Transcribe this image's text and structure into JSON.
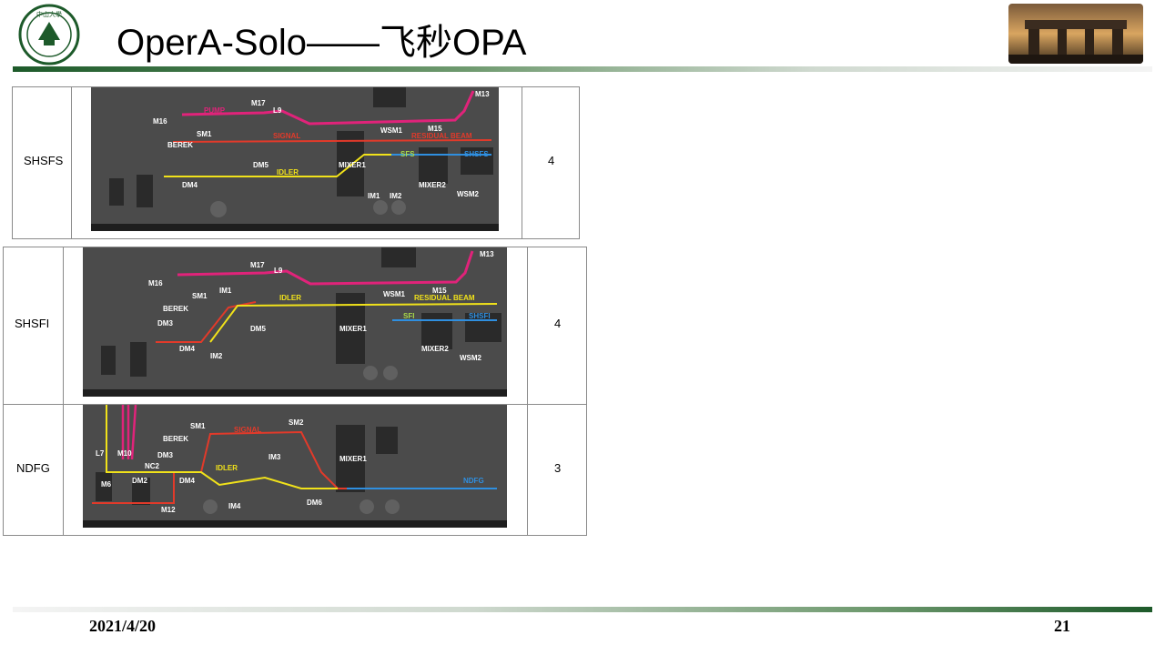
{
  "header": {
    "title": "OperA-Solo——飞秒OPA",
    "logo_text": "中山大學 SUN YAT-SEN UNIVERSITY"
  },
  "rows": [
    {
      "label": "SHSFS",
      "count": "4",
      "diagram_labels": [
        "M16",
        "PUMP",
        "M17",
        "L9",
        "SM1",
        "SIGNAL",
        "BEREK",
        "DM5",
        "IDLER",
        "DM4",
        "MIXER1",
        "WSM1",
        "M15",
        "RESIDUAL BEAM",
        "SFS",
        "SHSFS",
        "MIXER2",
        "WSM2",
        "IM1",
        "IM2",
        "M13"
      ]
    },
    {
      "label": "SHSFI",
      "count": "4",
      "diagram_labels": [
        "M16",
        "M17",
        "L9",
        "SM1",
        "IM1",
        "IDLER",
        "BEREK",
        "DM3",
        "DM5",
        "DM4",
        "IM2",
        "MIXER1",
        "WSM1",
        "M15",
        "RESIDUAL BEAM",
        "SFI",
        "SHSFI",
        "MIXER2",
        "WSM2",
        "M13"
      ]
    },
    {
      "label": "NDFG",
      "count": "3",
      "diagram_labels": [
        "SM1",
        "SIGNAL",
        "SM2",
        "BEREK",
        "L7",
        "M10",
        "DM3",
        "NC2",
        "IM3",
        "M6",
        "DM2",
        "DM4",
        "IDLER",
        "MIXER1",
        "NDFG",
        "DM6",
        "IM4",
        "M12"
      ]
    }
  ],
  "footer": {
    "date": "2021/4/20",
    "page_number": "21"
  },
  "colors": {
    "pump": "#e0237a",
    "signal": "#e23a2a",
    "idler": "#f1e21a",
    "output": "#2f8fe0",
    "brand_green": "#1d5a2a"
  }
}
